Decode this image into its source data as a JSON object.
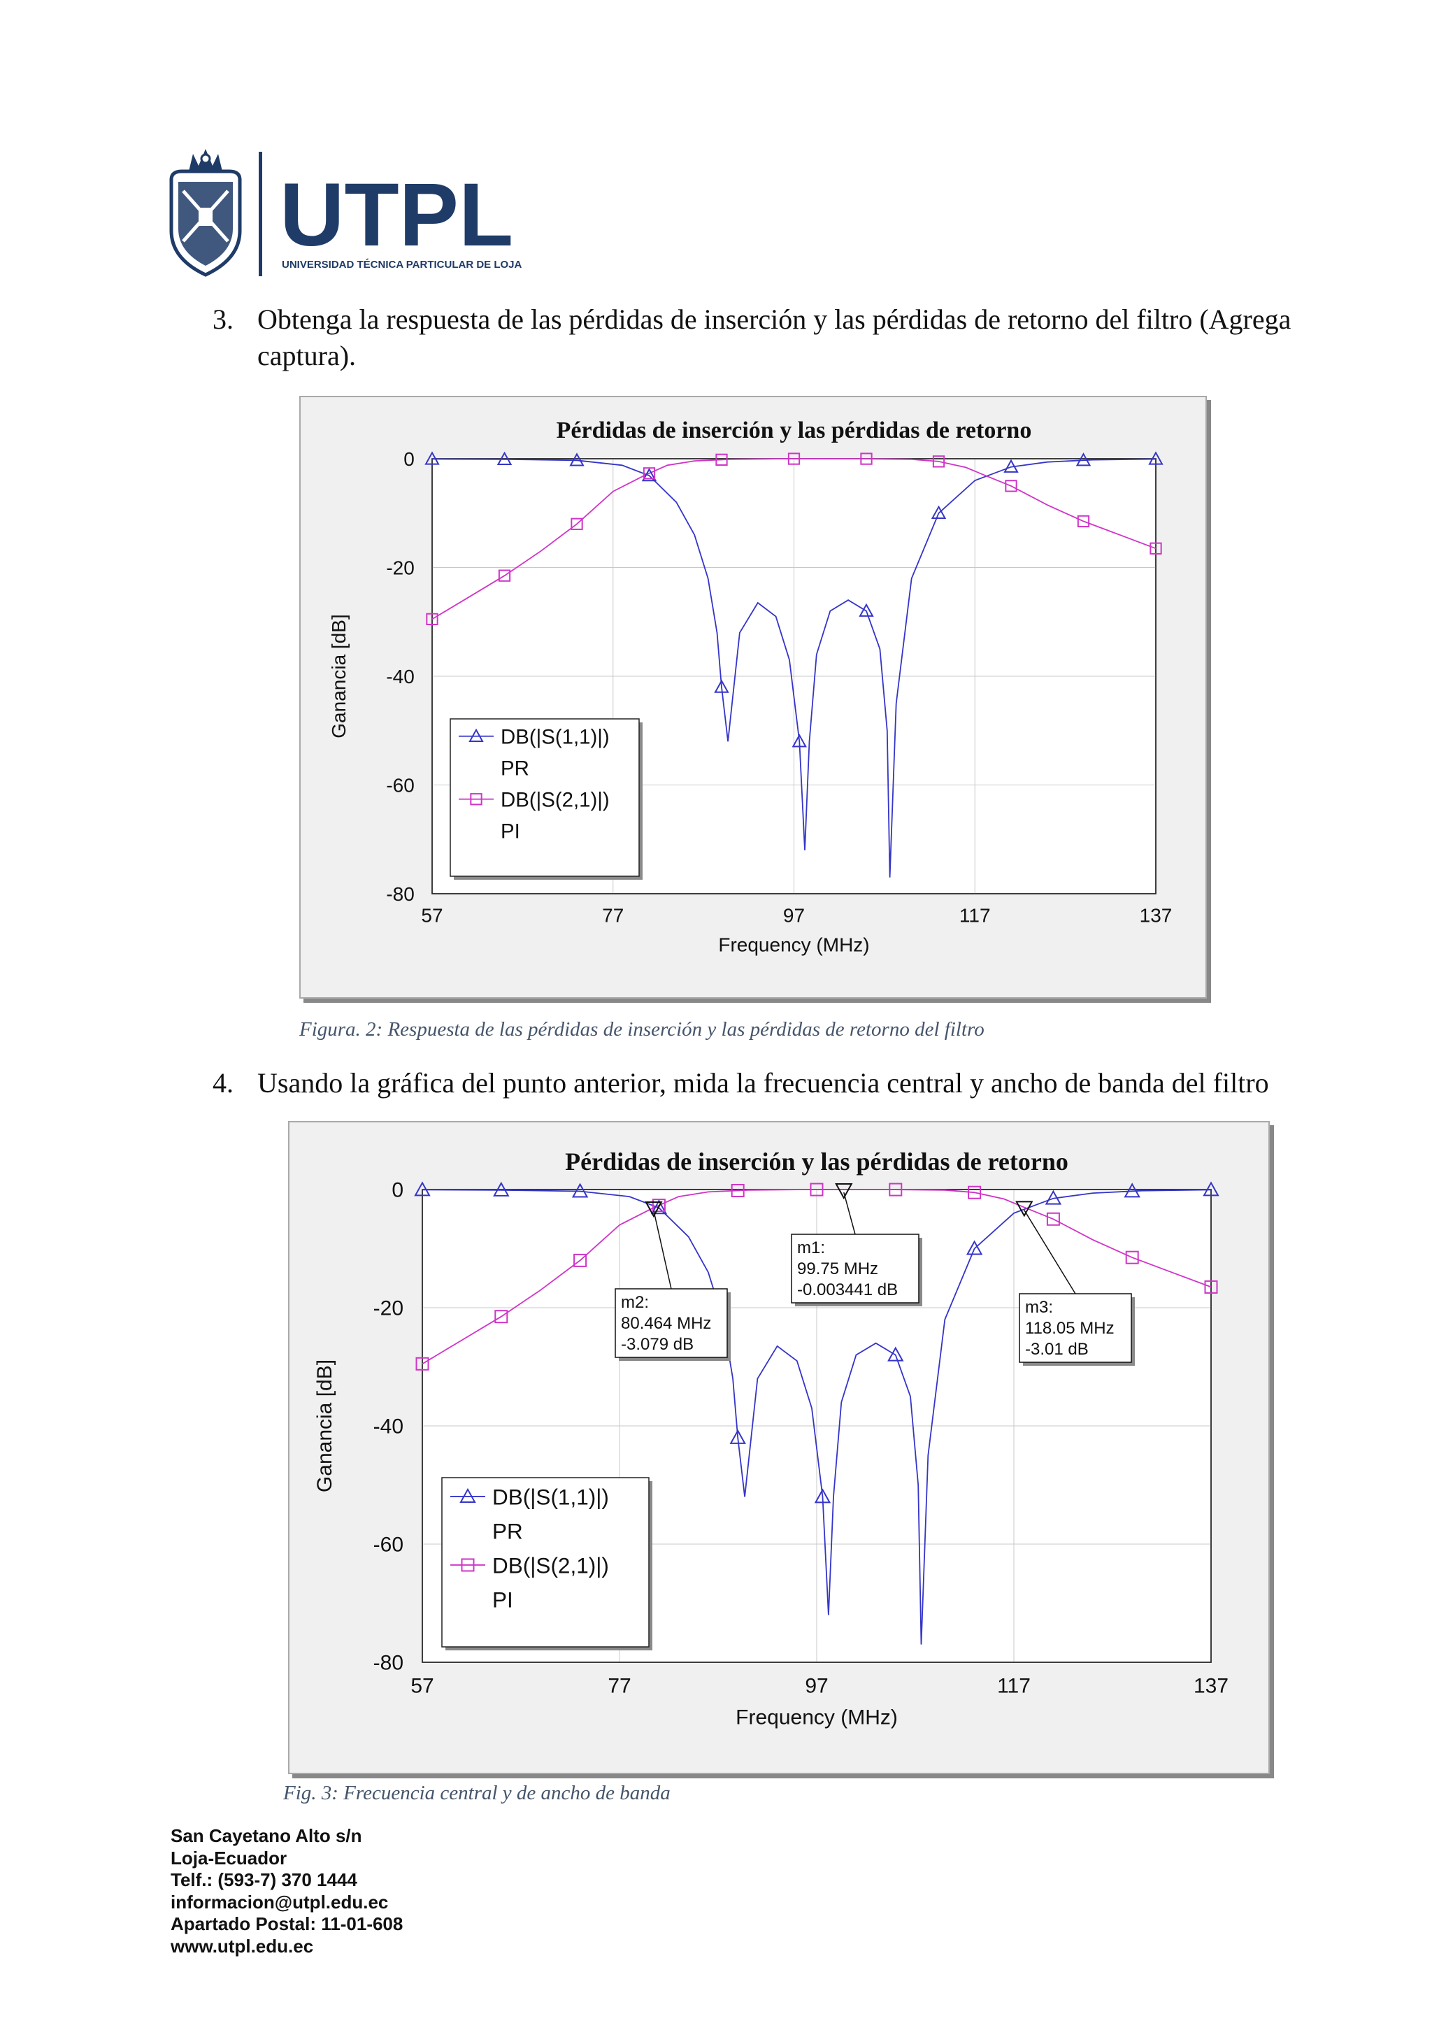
{
  "header": {
    "logo_name": "UTPL",
    "logo_subtitle": "UNIVERSIDAD TÉCNICA PARTICULAR DE LOJA",
    "brand_color": "#1f3b67"
  },
  "q3": {
    "number": "3.",
    "line1": "Obtenga la respuesta de las pérdidas de inserción y las pérdidas de retorno del filtro (Agrega",
    "line2": "captura)."
  },
  "q4": {
    "number": "4.",
    "line1": "Usando la gráfica del punto anterior, mida la frecuencia central y ancho de banda del filtro"
  },
  "captions": {
    "fig2": "Figura. 2: Respuesta de las pérdidas de inserción y las pérdidas de retorno del filtro",
    "fig3": "Fig. 3: Frecuencia central y de ancho de banda"
  },
  "footer": {
    "lines": [
      "San Cayetano Alto s/n",
      "Loja-Ecuador",
      "Telf.: (593-7) 370 1444",
      "informacion@utpl.edu.ec",
      "Apartado Postal: 11-01-608",
      "www.utpl.edu.ec"
    ]
  },
  "chart_data": [
    {
      "type": "line",
      "title": "Pérdidas de inserción y las pérdidas de retorno",
      "xlabel": "Frequency (MHz)",
      "ylabel": "Ganancia [dB]",
      "xlim": [
        57,
        137
      ],
      "ylim": [
        -80,
        0
      ],
      "xticks": [
        57,
        77,
        97,
        117,
        137
      ],
      "yticks": [
        0,
        -20,
        -40,
        -60,
        -80
      ],
      "grid": true,
      "legend_position": "bottom-left",
      "series": [
        {
          "name": "DB(|S(1,1)|)",
          "name2": "PR",
          "color": "#3535c8",
          "marker": "triangle",
          "x": [
            57,
            65,
            73,
            78,
            81,
            84,
            86,
            87.5,
            88.5,
            89,
            89.7,
            91,
            93,
            95,
            96.5,
            97.6,
            98.2,
            98.7,
            99.5,
            101,
            103,
            105,
            106.5,
            107.3,
            107.6,
            108.3,
            110,
            113,
            117,
            121,
            125,
            130,
            137
          ],
          "y": [
            -0.05,
            -0.1,
            -0.3,
            -1.2,
            -3.1,
            -8,
            -14,
            -22,
            -32,
            -42,
            -52,
            -32,
            -26.5,
            -29,
            -37,
            -52,
            -72,
            -52,
            -36,
            -28,
            -26,
            -28,
            -35,
            -50,
            -77,
            -45,
            -22,
            -10,
            -4,
            -1.5,
            -0.6,
            -0.2,
            -0.05
          ]
        },
        {
          "name": "DB(|S(2,1)|)",
          "name2": "PI",
          "color": "#d034c8",
          "marker": "square",
          "x": [
            57,
            61,
            65,
            69,
            73,
            77,
            80.46,
            83,
            86,
            90,
            95,
            99.75,
            105,
            110,
            113,
            116,
            118.05,
            121,
            125,
            129,
            133,
            137
          ],
          "y": [
            -29.5,
            -25.5,
            -21.5,
            -17,
            -12,
            -6,
            -3.08,
            -1.2,
            -0.4,
            -0.1,
            -0.01,
            -0.003,
            -0.01,
            -0.1,
            -0.5,
            -1.6,
            -3.01,
            -5,
            -8.5,
            -11.5,
            -14,
            -16.5
          ]
        }
      ],
      "series_markers": {
        "s11_x": [
          57,
          65,
          73,
          81,
          89,
          97.6,
          105,
          113,
          121,
          129,
          137
        ],
        "s21_x": [
          57,
          65,
          73,
          81,
          89,
          97,
          105,
          113,
          121,
          129,
          137
        ]
      }
    },
    {
      "type": "line",
      "title": "Pérdidas de inserción y las pérdidas de retorno",
      "xlabel": "Frequency (MHz)",
      "ylabel": "Ganancia [dB]",
      "xlim": [
        57,
        137
      ],
      "ylim": [
        -80,
        0
      ],
      "xticks": [
        57,
        77,
        97,
        117,
        137
      ],
      "yticks": [
        0,
        -20,
        -40,
        -60,
        -80
      ],
      "grid": true,
      "legend_position": "bottom-left",
      "series": [
        {
          "name": "DB(|S(1,1)|)",
          "name2": "PR",
          "color": "#3535c8",
          "marker": "triangle"
        },
        {
          "name": "DB(|S(2,1)|)",
          "name2": "PI",
          "color": "#d034c8",
          "marker": "square"
        }
      ],
      "markers": [
        {
          "label": "m1:",
          "freq": "99.75 MHz",
          "value": "-0.003441 dB",
          "x": 99.75,
          "y": -0.003
        },
        {
          "label": "m2:",
          "freq": "80.464 MHz",
          "value": "-3.079 dB",
          "x": 80.464,
          "y": -3.079
        },
        {
          "label": "m3:",
          "freq": "118.05 MHz",
          "value": "-3.01 dB",
          "x": 118.05,
          "y": -3.01
        }
      ]
    }
  ]
}
